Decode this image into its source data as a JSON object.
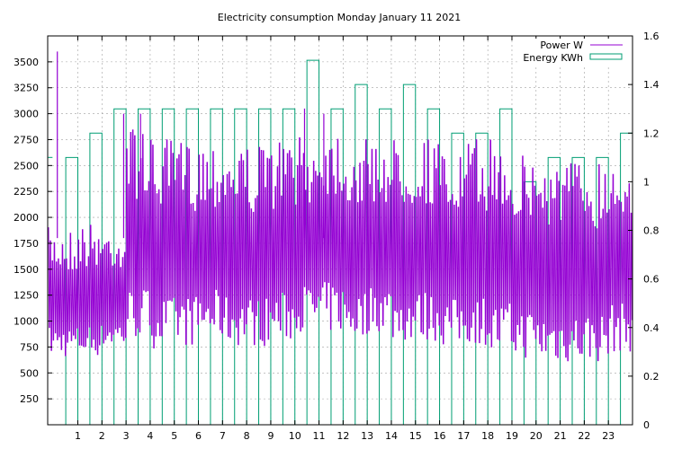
{
  "chart_data": {
    "type": "line",
    "title": "Electricity consumption Monday January 11 2021",
    "xlabel": "",
    "ylabel": "",
    "y2label": "",
    "grid": true,
    "legend_position": "top-right",
    "xlim": [
      -0.25,
      24
    ],
    "ylim": [
      0,
      3750
    ],
    "y2lim": [
      0,
      1.6
    ],
    "x_ticks": [
      1,
      2,
      3,
      4,
      5,
      6,
      7,
      8,
      9,
      10,
      11,
      12,
      13,
      14,
      15,
      16,
      17,
      18,
      19,
      20,
      21,
      22,
      23
    ],
    "y_ticks": [
      250,
      500,
      750,
      1000,
      1250,
      1500,
      1750,
      2000,
      2250,
      2500,
      2750,
      3000,
      3250,
      3500
    ],
    "y2_ticks": [
      0,
      0.2,
      0.4,
      0.6,
      0.8,
      1,
      1.2,
      1.4,
      1.6
    ],
    "series": [
      {
        "name": "Power W",
        "color": "#9400d3",
        "axis": "y",
        "render": "oscillating",
        "values_hourly": [
          {
            "hour": 0,
            "low": 650,
            "high": 1900
          },
          {
            "hour": 1,
            "low": 660,
            "high": 1950
          },
          {
            "hour": 2,
            "low": 740,
            "high": 1900
          },
          {
            "hour": 3,
            "low": 820,
            "high": 2900
          },
          {
            "hour": 4,
            "low": 740,
            "high": 2750
          },
          {
            "hour": 5,
            "low": 760,
            "high": 2750
          },
          {
            "hour": 6,
            "low": 820,
            "high": 2770
          },
          {
            "hour": 7,
            "low": 760,
            "high": 2750
          },
          {
            "hour": 8,
            "low": 760,
            "high": 2700
          },
          {
            "hour": 9,
            "low": 800,
            "high": 2760
          },
          {
            "hour": 10,
            "low": 900,
            "high": 2770
          },
          {
            "hour": 11,
            "low": 880,
            "high": 2900
          },
          {
            "hour": 12,
            "low": 820,
            "high": 2750
          },
          {
            "hour": 13,
            "low": 900,
            "high": 2770
          },
          {
            "hour": 14,
            "low": 800,
            "high": 2770
          },
          {
            "hour": 15,
            "low": 800,
            "high": 2800
          },
          {
            "hour": 16,
            "low": 760,
            "high": 2620
          },
          {
            "hour": 17,
            "low": 770,
            "high": 2750
          },
          {
            "hour": 18,
            "low": 660,
            "high": 2770
          },
          {
            "hour": 19,
            "low": 640,
            "high": 2620
          },
          {
            "hour": 20,
            "low": 590,
            "high": 2580
          },
          {
            "hour": 21,
            "low": 590,
            "high": 2580
          },
          {
            "hour": 22,
            "low": 600,
            "high": 2580
          },
          {
            "hour": 23,
            "low": 700,
            "high": 2620
          }
        ],
        "spikes": [
          {
            "x": 0.15,
            "y": 3600
          },
          {
            "x": 2.9,
            "y": 3000
          },
          {
            "x": 3.6,
            "y": 3000
          },
          {
            "x": 10.4,
            "y": 3050
          },
          {
            "x": 11.2,
            "y": 3000
          }
        ]
      },
      {
        "name": "Energy KWh",
        "color": "#009e73",
        "axis": "y2",
        "render": "boxes",
        "values": [
          {
            "hour": 0,
            "kwh": 1.1
          },
          {
            "hour": 1,
            "kwh": 1.2
          },
          {
            "hour": 2,
            "kwh": 1.3
          },
          {
            "hour": 3,
            "kwh": 1.3
          },
          {
            "hour": 4,
            "kwh": 1.3
          },
          {
            "hour": 5,
            "kwh": 1.3
          },
          {
            "hour": 6,
            "kwh": 1.3
          },
          {
            "hour": 7,
            "kwh": 1.3
          },
          {
            "hour": 8,
            "kwh": 1.3
          },
          {
            "hour": 9,
            "kwh": 1.3
          },
          {
            "hour": 10,
            "kwh": 1.5
          },
          {
            "hour": 11,
            "kwh": 1.3
          },
          {
            "hour": 12,
            "kwh": 1.4
          },
          {
            "hour": 13,
            "kwh": 1.3
          },
          {
            "hour": 14,
            "kwh": 1.4
          },
          {
            "hour": 15,
            "kwh": 1.3
          },
          {
            "hour": 16,
            "kwh": 1.2
          },
          {
            "hour": 17,
            "kwh": 1.2
          },
          {
            "hour": 18,
            "kwh": 1.3
          },
          {
            "hour": 19,
            "kwh": 1.0
          },
          {
            "hour": 20,
            "kwh": 1.1
          },
          {
            "hour": 21,
            "kwh": 1.1
          },
          {
            "hour": 22,
            "kwh": 1.1
          },
          {
            "hour": 23,
            "kwh": 1.2
          }
        ]
      }
    ]
  }
}
